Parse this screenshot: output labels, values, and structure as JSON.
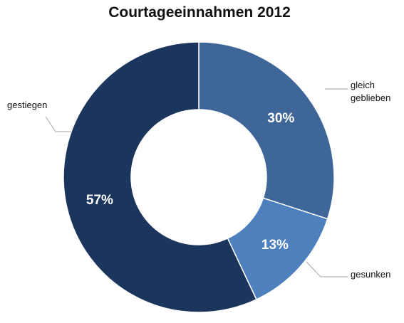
{
  "chart_data": {
    "type": "pie",
    "style": "donut",
    "title": "Courtageeinnahmen 2012",
    "categories": [
      "gleich geblieben",
      "gesunken",
      "gestiegen"
    ],
    "values": [
      30,
      13,
      57
    ],
    "value_labels": [
      "30%",
      "13%",
      "57%"
    ],
    "label_lines": [
      [
        "gleich",
        "geblieben"
      ],
      [
        "gesunken"
      ],
      [
        "gestiegen"
      ]
    ],
    "colors": [
      "#3f6699",
      "#4e80bd",
      "#1b355d"
    ],
    "legend": "none"
  }
}
